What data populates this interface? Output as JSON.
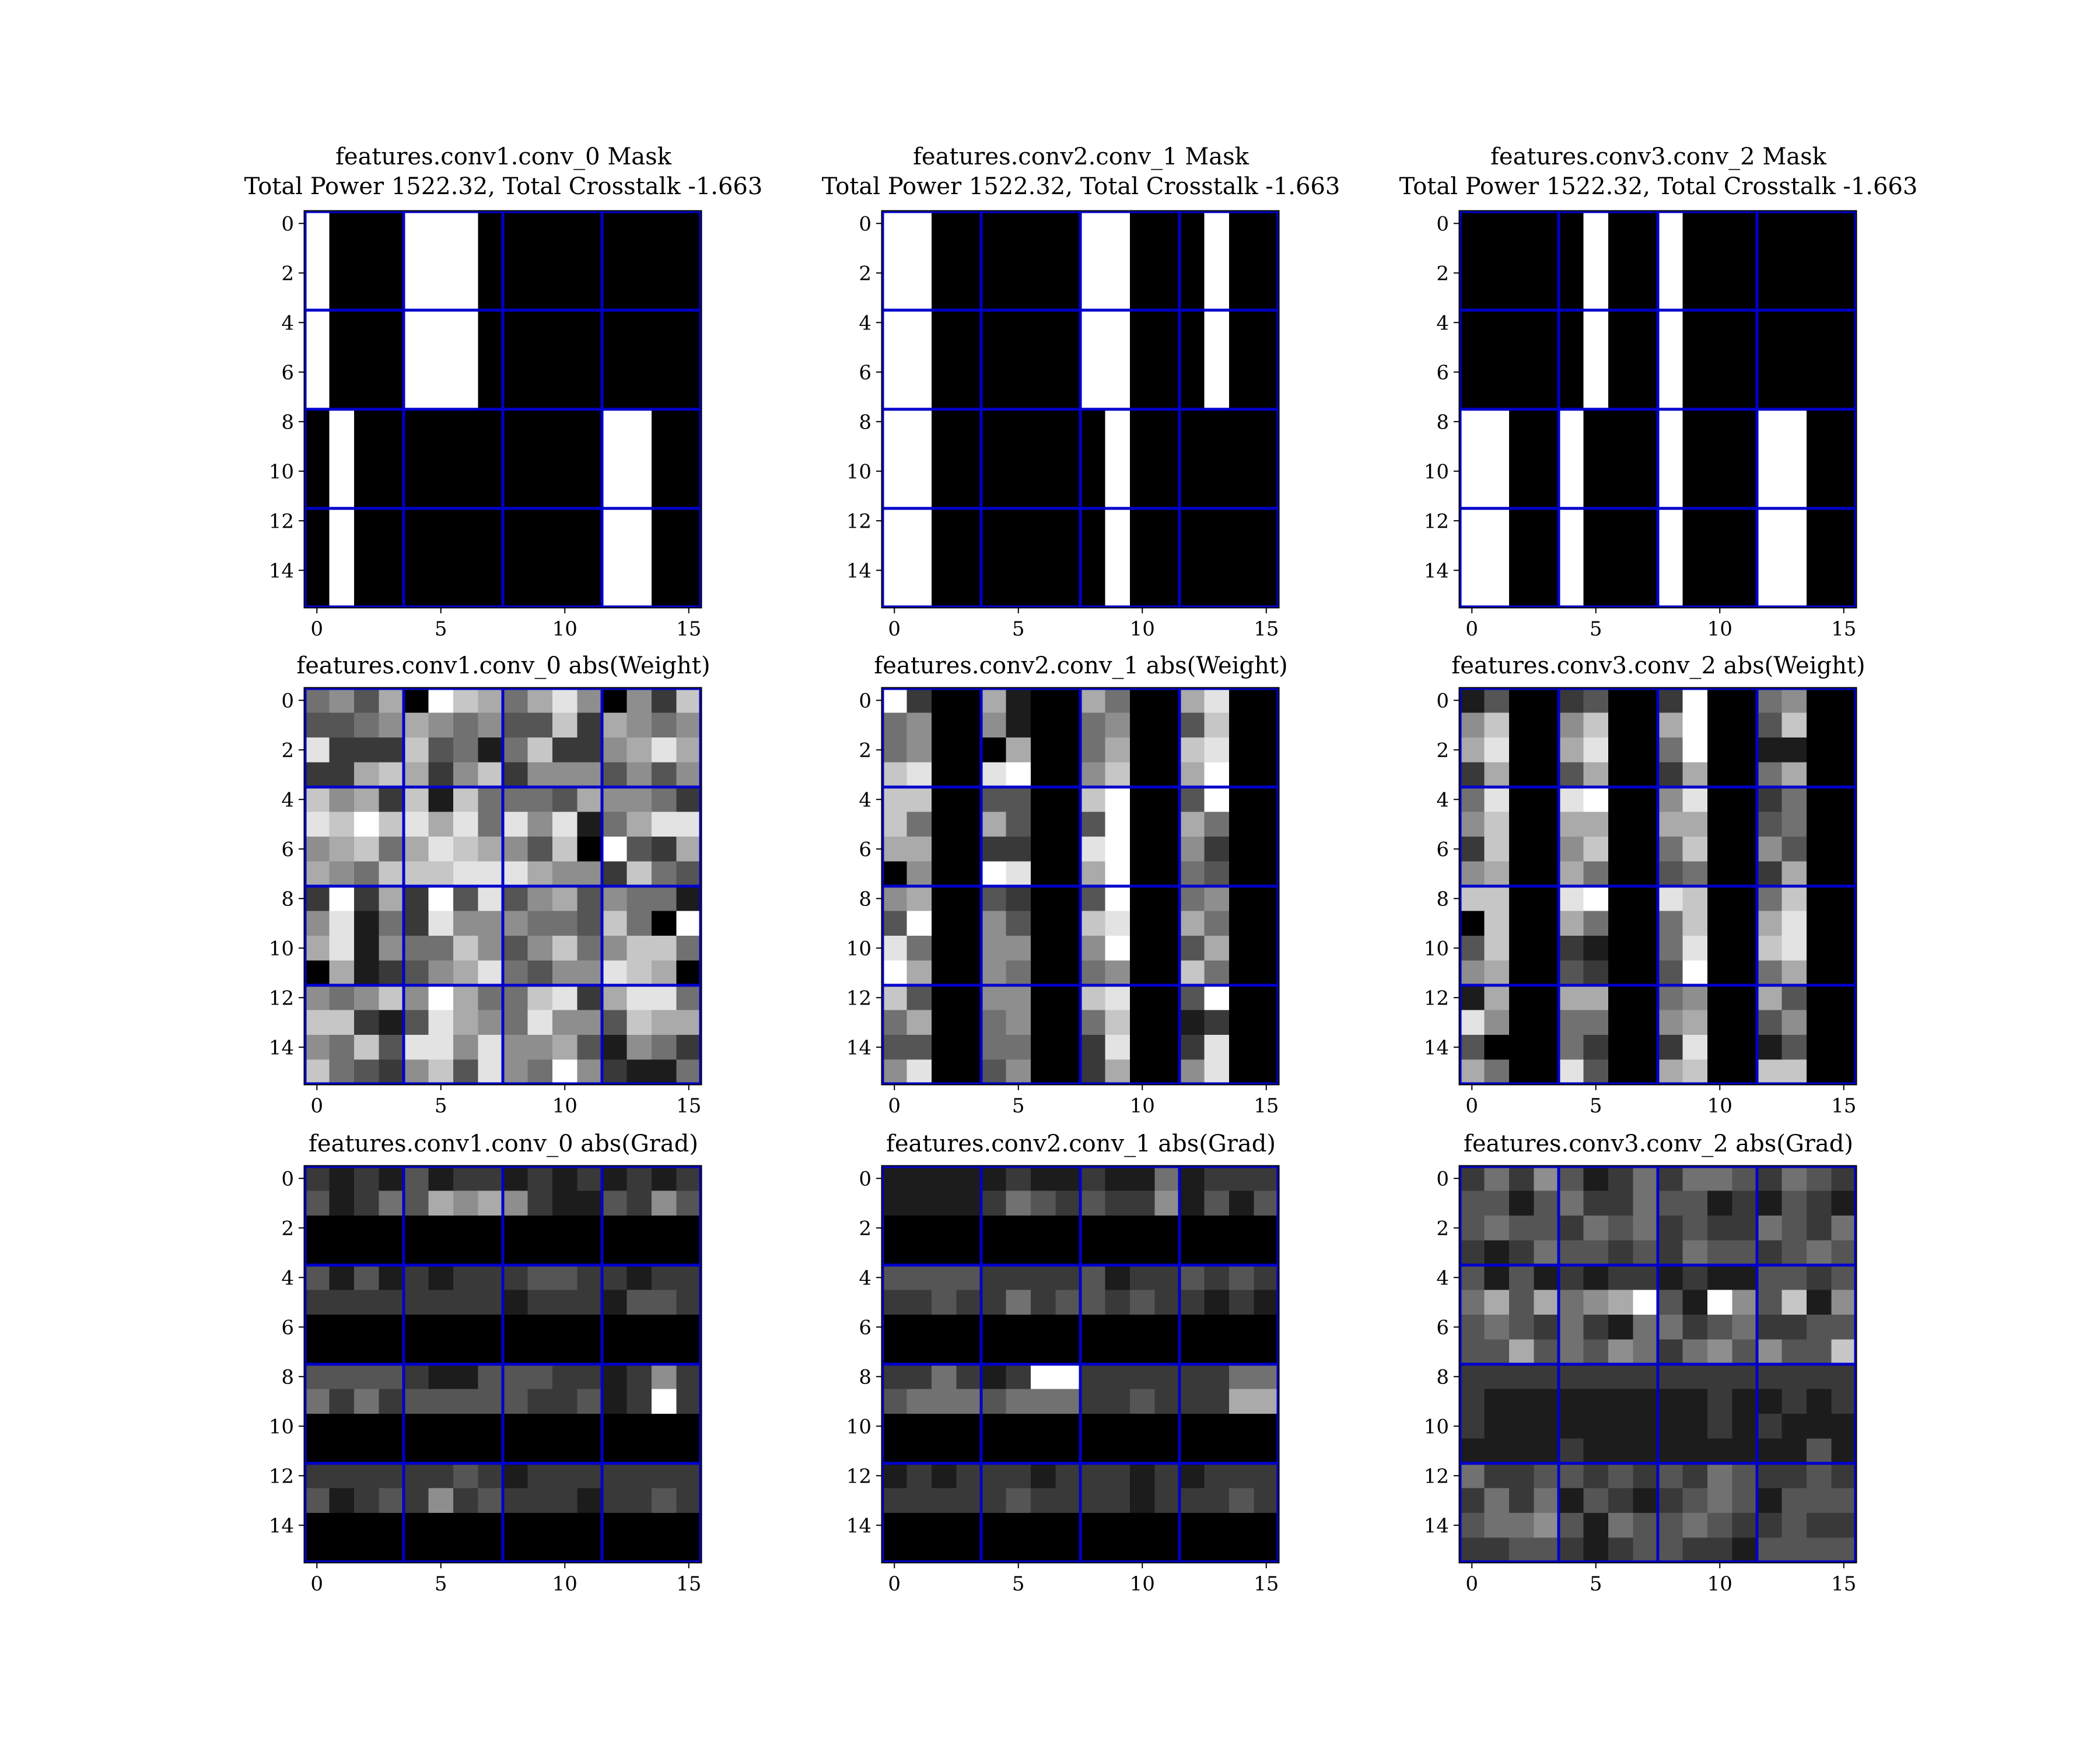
{
  "colors": {
    "grid_line": "#0000cc",
    "frame": "#000000",
    "background": "#ffffff",
    "colormap": "gray"
  },
  "chart_data": [
    {
      "type": "heatmap",
      "title": "features.conv1.conv_0 Mask",
      "subtitle": "Total Power 1522.32, Total Crosstalk -1.663",
      "xticks": [
        0,
        5,
        10,
        15
      ],
      "yticks": [
        0,
        2,
        4,
        6,
        8,
        10,
        12,
        14
      ],
      "block_size": 4,
      "value_range": [
        0,
        1
      ],
      "matrix": [
        "1000111000000000",
        "1000111000000000",
        "1000111000000000",
        "1000111000000000",
        "1000111000000000",
        "1000111000000000",
        "1000111000000000",
        "1000111000000000",
        "0100000000001100",
        "0100000000001100",
        "0100000000001100",
        "0100000000001100",
        "0100000000001100",
        "0100000000001100",
        "0100000000001100",
        "0100000000001100"
      ]
    },
    {
      "type": "heatmap",
      "title": "features.conv2.conv_1 Mask",
      "subtitle": "Total Power 1522.32, Total Crosstalk -1.663",
      "xticks": [
        0,
        5,
        10,
        15
      ],
      "yticks": [
        0,
        2,
        4,
        6,
        8,
        10,
        12,
        14
      ],
      "block_size": 4,
      "value_range": [
        0,
        1
      ],
      "matrix": [
        "1100000011000100",
        "1100000011000100",
        "1100000011000100",
        "1100000011000100",
        "1100000011000100",
        "1100000011000100",
        "1100000011000100",
        "1100000011000100",
        "1100000001000000",
        "1100000001000000",
        "1100000001000000",
        "1100000001000000",
        "1100000001000000",
        "1100000001000000",
        "1100000001000000",
        "1100000001000000"
      ]
    },
    {
      "type": "heatmap",
      "title": "features.conv3.conv_2 Mask",
      "subtitle": "Total Power 1522.32, Total Crosstalk -1.663",
      "xticks": [
        0,
        5,
        10,
        15
      ],
      "yticks": [
        0,
        2,
        4,
        6,
        8,
        10,
        12,
        14
      ],
      "block_size": 4,
      "value_range": [
        0,
        1
      ],
      "matrix": [
        "0000010010000000",
        "0000010010000000",
        "0000010010000000",
        "0000010010000000",
        "0000010010000000",
        "0000010010000000",
        "0000010010000000",
        "0000010010000000",
        "1100100010001100",
        "1100100010001100",
        "1100100010001100",
        "1100100010001100",
        "1100100010001100",
        "1100100010001100",
        "1100100010001100",
        "1100100010001100"
      ]
    },
    {
      "type": "heatmap",
      "title": "features.conv1.conv_0 abs(Weight)",
      "xticks": [
        0,
        5,
        10,
        15
      ],
      "yticks": [
        0,
        2,
        4,
        6,
        8,
        10,
        12,
        14
      ],
      "block_size": 4,
      "value_range": [
        0,
        9
      ],
      "matrix": [
        "4536097646850527",
        "3345654533726545",
        "8222734147225686",
        "2267625725553535",
        "7562717444365542",
        "8797868485814688",
        "5674687653709326",
        "6547778886552743",
        "2926293835635441",
        "5814285554437409",
        "6815447535745774",
        "0612356843558760",
        "5457596447826884",
        "7721386548553766",
        "5473885855631542",
        "7432573854952114"
      ]
    },
    {
      "type": "heatmap",
      "title": "features.conv2.conv_1 abs(Weight)",
      "xticks": [
        0,
        5,
        10,
        15
      ],
      "yticks": [
        0,
        2,
        4,
        6,
        8,
        10,
        12,
        14
      ],
      "block_size": 4,
      "value_range": [
        0,
        9
      ],
      "matrix": [
        "9200610064006800",
        "4500510045003700",
        "4500060046007800",
        "7800890057006900",
        "7700330079003900",
        "7400630039006400",
        "6600220089005200",
        "0500980069004300",
        "5600320039004500",
        "3900530078006400",
        "8400550059003600",
        "9600540045007400",
        "7300550078003900",
        "4600450047001200",
        "3300440028002800",
        "5800350026005800"
      ]
    },
    {
      "type": "heatmap",
      "title": "features.conv3.conv_2 abs(Weight)",
      "xticks": [
        0,
        5,
        10,
        15
      ],
      "yticks": [
        0,
        2,
        4,
        6,
        8,
        10,
        12,
        14
      ],
      "block_size": 4,
      "value_range": [
        0,
        9
      ],
      "matrix": [
        "1300230029004500",
        "5700570069003700",
        "6800680049001100",
        "2600360026004600",
        "4800890058002400",
        "5700660066003400",
        "2700570047005300",
        "5600640034002600",
        "7700890087004700",
        "0700640047006800",
        "3700210048007800",
        "5600320039004600",
        "1600660045006300",
        "8500440056003500",
        "3000420028001300",
        "6400830067007700"
      ]
    },
    {
      "type": "heatmap",
      "title": "features.conv1.conv_0 abs(Grad)",
      "xticks": [
        0,
        5,
        10,
        15
      ],
      "yticks": [
        0,
        2,
        4,
        6,
        8,
        10,
        12,
        14
      ],
      "block_size": 4,
      "value_range": [
        0,
        9
      ],
      "matrix": [
        "2121312212121212",
        "3124365652113253",
        "0000000000000000",
        "0000000000000000",
        "3131212223322122",
        "2222222212221332",
        "0000000000000000",
        "0000000000000000",
        "3333211333221252",
        "4242333332231292",
        "0000000000000000",
        "0000000000000000",
        "2222223212222222",
        "3123252322212232",
        "0000000000000000",
        "0000000000000000"
      ]
    },
    {
      "type": "heatmap",
      "title": "features.conv2.conv_1 abs(Grad)",
      "xticks": [
        0,
        5,
        10,
        15
      ],
      "yticks": [
        0,
        2,
        4,
        6,
        8,
        10,
        12,
        14
      ],
      "block_size": 4,
      "value_range": [
        0,
        9
      ],
      "matrix": [
        "1111121121141222",
        "1111243232251313",
        "0000000000000000",
        "0000000000000000",
        "3333222231223232",
        "2232242332322121",
        "0000000000000000",
        "0000000000000000",
        "2242129922222244",
        "3444344422322266",
        "0000000000000000",
        "0000000000000000",
        "1212221222121222",
        "2222232222122232",
        "0000000000000000",
        "0000000000000000"
      ]
    },
    {
      "type": "heatmap",
      "title": "features.conv3.conv_2 abs(Grad)",
      "xticks": [
        0,
        5,
        10,
        15
      ],
      "yticks": [
        0,
        2,
        4,
        6,
        8,
        10,
        12,
        14
      ],
      "block_size": 4,
      "value_range": [
        0,
        9
      ],
      "matrix": [
        "2425312424432432",
        "3313422433121321",
        "3433243423224324",
        "2124332324332343",
        "3131212212113323",
        "4636456931953715",
        "3432421442342233",
        "3363435424535337",
        "2222222222222222",
        "2111111111211212",
        "2111111111212111",
        "1111211111111131",
        "4223323232432232",
        "2424132123431333",
        "3445314334322322",
        "2233212332213333"
      ]
    }
  ]
}
